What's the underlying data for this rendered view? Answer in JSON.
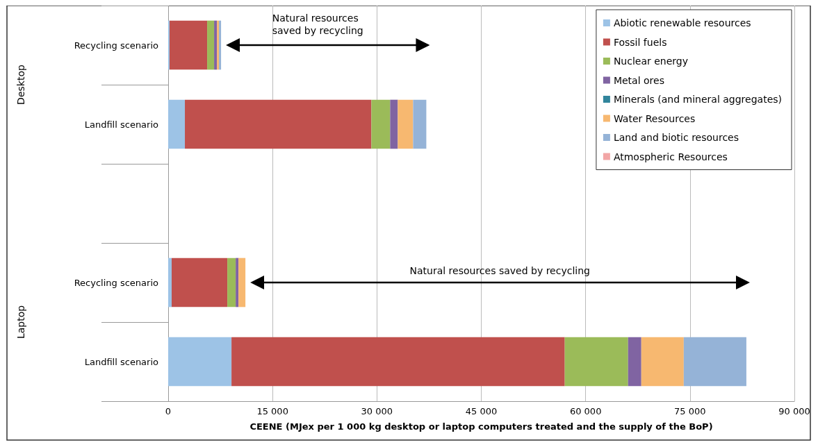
{
  "chart_data": {
    "type": "bar",
    "orientation": "horizontal",
    "stacked": true,
    "xlabel": "CEENE (MJex per 1 000 kg desktop or laptop computers treated and the supply of the BoP)",
    "categories": [
      "Recycling scenario",
      "Landfill scenario",
      null,
      "Recycling scenario",
      "Landfill scenario"
    ],
    "series": [
      {
        "name": "Abiotic renewable resources",
        "color": "#9dc3e6",
        "values": [
          200,
          2400,
          null,
          500,
          9100
        ]
      },
      {
        "name": "Fossil fuels",
        "color": "#c0504d",
        "values": [
          5400,
          26800,
          null,
          8000,
          47900
        ]
      },
      {
        "name": "Nuclear energy",
        "color": "#9bbb59",
        "values": [
          1000,
          2700,
          null,
          1200,
          9100
        ]
      },
      {
        "name": "Metal ores",
        "color": "#8064a2",
        "values": [
          400,
          1100,
          null,
          400,
          1900
        ]
      },
      {
        "name": "Minerals (and mineral aggregates)",
        "color": "#31859c",
        "values": [
          0,
          0,
          null,
          0,
          0
        ]
      },
      {
        "name": "Water Resources",
        "color": "#f7b870",
        "values": [
          300,
          2200,
          null,
          1000,
          6100
        ]
      },
      {
        "name": "Land and biotic resources",
        "color": "#95b3d7",
        "values": [
          300,
          1900,
          null,
          0,
          9000
        ]
      },
      {
        "name": "Atmospheric Resources",
        "color": "#f2a6a6",
        "values": [
          0,
          0,
          null,
          0,
          0
        ]
      }
    ],
    "xlim": [
      0,
      90000
    ],
    "xticks": [
      {
        "value": 0,
        "label": "0"
      },
      {
        "value": 15000,
        "label": "15 000"
      },
      {
        "value": 30000,
        "label": "30 000"
      },
      {
        "value": 45000,
        "label": "45 000"
      },
      {
        "value": 60000,
        "label": "60 000"
      },
      {
        "value": 75000,
        "label": "75 000"
      },
      {
        "value": 90000,
        "label": "90 000"
      }
    ],
    "grid": "x",
    "legend": "top right",
    "annotations": [
      "Natural resources saved by recycling",
      "Natural resources saved by recycling",
      "Desktop",
      "Laptop"
    ]
  }
}
